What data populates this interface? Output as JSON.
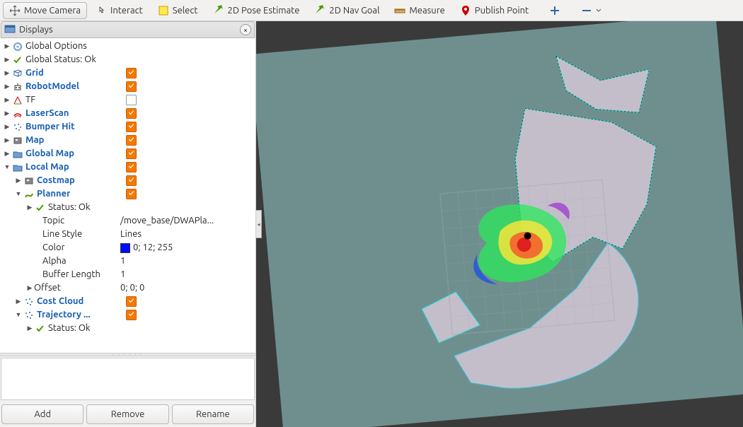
{
  "toolbar": {
    "move_camera": "Move Camera",
    "interact": "Interact",
    "select": "Select",
    "pose_estimate": "2D Pose Estimate",
    "nav_goal": "2D Nav Goal",
    "measure": "Measure",
    "publish_point": "Publish Point"
  },
  "panel": {
    "title": "Displays"
  },
  "tree": {
    "global_options": "Global Options",
    "global_status": "Global Status: Ok",
    "grid": "Grid",
    "robot_model": "RobotModel",
    "tf": "TF",
    "laser_scan": "LaserScan",
    "bumper_hit": "Bumper Hit",
    "map": "Map",
    "global_map": "Global Map",
    "local_map": "Local Map",
    "costmap": "Costmap",
    "planner": "Planner",
    "planner_status": "Status: Ok",
    "cost_cloud": "Cost Cloud",
    "trajectory": "Trajectory ...",
    "trajectory_status": "Status: Ok",
    "props": {
      "topic": {
        "label": "Topic",
        "value": "/move_base/DWAPla..."
      },
      "line_style": {
        "label": "Line Style",
        "value": "Lines"
      },
      "color": {
        "label": "Color",
        "value": "0; 12; 255",
        "swatch": "#000cff"
      },
      "alpha": {
        "label": "Alpha",
        "value": "1"
      },
      "buffer_length": {
        "label": "Buffer Length",
        "value": "1"
      },
      "offset": {
        "label": "Offset",
        "value": "0; 0; 0"
      }
    }
  },
  "buttons": {
    "add": "Add",
    "remove": "Remove",
    "rename": "Rename"
  },
  "viewport": {
    "background": "#3a3a3a",
    "map_bg": "#6f8f8f",
    "grid_color": "#9aa8a8",
    "robot_color": "#000000"
  },
  "colors": {
    "accent_checkbox": "#f57900",
    "link": "#1a5fb4"
  }
}
